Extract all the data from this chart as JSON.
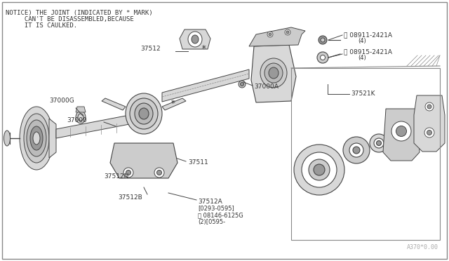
{
  "bg_color": "#ffffff",
  "border_color": "#aaaaaa",
  "line_color": "#444444",
  "text_color": "#333333",
  "notice_lines": [
    "NOTICE) THE JOINT (INDICATED BY * MARK)",
    "     CAN'T BE DISASSEMBLED,BECAUSE",
    "     IT IS CAULKED."
  ],
  "watermark": "A370*0.00",
  "figsize": [
    6.4,
    3.72
  ],
  "dpi": 100
}
